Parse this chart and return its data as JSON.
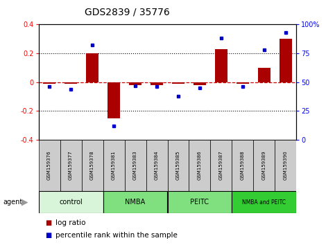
{
  "title": "GDS2839 / 35776",
  "samples": [
    "GSM159376",
    "GSM159377",
    "GSM159378",
    "GSM159381",
    "GSM159383",
    "GSM159384",
    "GSM159385",
    "GSM159386",
    "GSM159387",
    "GSM159388",
    "GSM159389",
    "GSM159390"
  ],
  "log_ratio": [
    -0.01,
    -0.01,
    0.2,
    -0.25,
    -0.02,
    -0.02,
    -0.01,
    -0.02,
    0.23,
    -0.01,
    0.1,
    0.3
  ],
  "percentile_rank": [
    46,
    44,
    82,
    12,
    47,
    46,
    38,
    45,
    88,
    46,
    78,
    93
  ],
  "groups": [
    {
      "label": "control",
      "start": 0,
      "end": 3,
      "color": "#d9f5d9"
    },
    {
      "label": "NMBA",
      "start": 3,
      "end": 6,
      "color": "#80e080"
    },
    {
      "label": "PEITC",
      "start": 6,
      "end": 9,
      "color": "#80e080"
    },
    {
      "label": "NMBA and PEITC",
      "start": 9,
      "end": 12,
      "color": "#33cc33"
    }
  ],
  "ylim_left": [
    -0.4,
    0.4
  ],
  "ylim_right": [
    0,
    100
  ],
  "yticks_left": [
    -0.4,
    -0.2,
    0.0,
    0.2,
    0.4
  ],
  "yticks_right": [
    0,
    25,
    50,
    75,
    100
  ],
  "yticklabels_right": [
    "0",
    "25",
    "50",
    "75",
    "100%"
  ],
  "yticklabels_left": [
    "-0.4",
    "-0.2",
    "0",
    "0.2",
    "0.4"
  ],
  "bar_color": "#AA0000",
  "dot_color": "#0000CC",
  "dashed_color": "#CC0000",
  "dot_line_color": "#000000",
  "bg_plot": "#ffffff",
  "bg_sample": "#cccccc",
  "title_fontsize": 10,
  "tick_fontsize": 7,
  "sample_fontsize": 5,
  "group_fontsize": 7,
  "legend_fontsize": 7.5
}
